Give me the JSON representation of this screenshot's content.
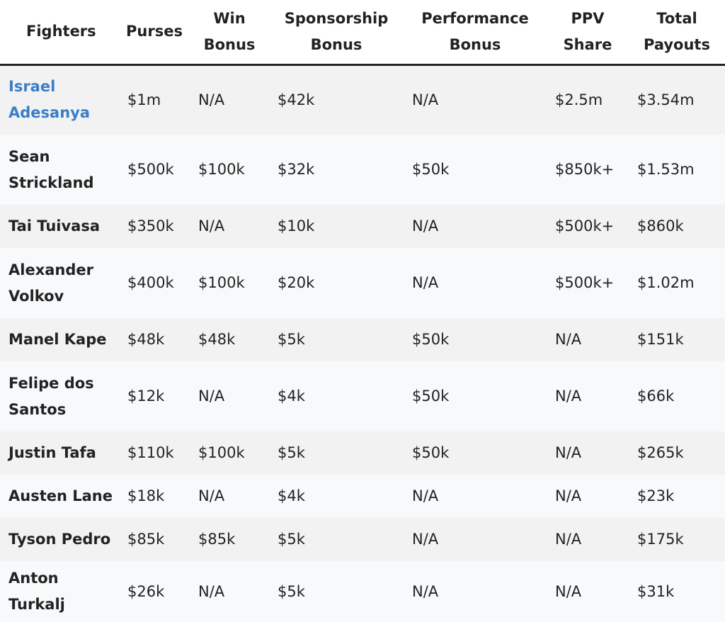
{
  "colors": {
    "link": "#3a7ec8",
    "text": "#222222",
    "row_alt_a": "#f2f2f2",
    "row_alt_b": "#f7f9fb",
    "header_border": "#222222"
  },
  "headers": {
    "fighters": "Fighters",
    "purses": "Purses",
    "win_bonus_l1": "Win",
    "win_bonus_l2": "Bonus",
    "sponsorship_l1": "Sponsorship",
    "sponsorship_l2": "Bonus",
    "performance_l1": "Performance",
    "performance_l2": "Bonus",
    "ppv_l1": "PPV",
    "ppv_l2": "Share",
    "total_l1": "Total",
    "total_l2": "Payouts"
  },
  "rows": [
    {
      "name_l1": "Israel",
      "name_l2": "Adesanya",
      "purse": "$1m",
      "win_bonus": "N/A",
      "sponsorship": "$42k",
      "performance": "N/A",
      "ppv": "$2.5m",
      "total": "$3.54m"
    },
    {
      "name_l1": "Sean",
      "name_l2": "Strickland",
      "purse": "$500k",
      "win_bonus": "$100k",
      "sponsorship": "$32k",
      "performance": "$50k",
      "ppv": "$850k+",
      "total": "$1.53m"
    },
    {
      "name_l1": "Tai Tuivasa",
      "name_l2": "",
      "purse": "$350k",
      "win_bonus": "N/A",
      "sponsorship": "$10k",
      "performance": "N/A",
      "ppv": "$500k+",
      "total": "$860k"
    },
    {
      "name_l1": "Alexander",
      "name_l2": "Volkov",
      "purse": "$400k",
      "win_bonus": "$100k",
      "sponsorship": "$20k",
      "performance": "N/A",
      "ppv": "$500k+",
      "total": "$1.02m"
    },
    {
      "name_l1": "Manel Kape",
      "name_l2": "",
      "purse": "$48k",
      "win_bonus": "$48k",
      "sponsorship": "$5k",
      "performance": "$50k",
      "ppv": "N/A",
      "total": "$151k"
    },
    {
      "name_l1": "Felipe dos",
      "name_l2": "Santos",
      "purse": "$12k",
      "win_bonus": "N/A",
      "sponsorship": "$4k",
      "performance": "$50k",
      "ppv": "N/A",
      "total": "$66k"
    },
    {
      "name_l1": "Justin Tafa",
      "name_l2": "",
      "purse": "$110k",
      "win_bonus": "$100k",
      "sponsorship": "$5k",
      "performance": "$50k",
      "ppv": "N/A",
      "total": "$265k"
    },
    {
      "name_l1": "Austen Lane",
      "name_l2": "",
      "purse": "$18k",
      "win_bonus": "N/A",
      "sponsorship": "$4k",
      "performance": "N/A",
      "ppv": "N/A",
      "total": "$23k"
    },
    {
      "name_l1": "Tyson Pedro",
      "name_l2": "",
      "purse": "$85k",
      "win_bonus": "$85k",
      "sponsorship": "$5k",
      "performance": "N/A",
      "ppv": "N/A",
      "total": "$175k"
    },
    {
      "name_l1": "Anton",
      "name_l2": "Turkalj",
      "purse": "$26k",
      "win_bonus": "N/A",
      "sponsorship": "$5k",
      "performance": "N/A",
      "ppv": "N/A",
      "total": "$31k"
    }
  ]
}
